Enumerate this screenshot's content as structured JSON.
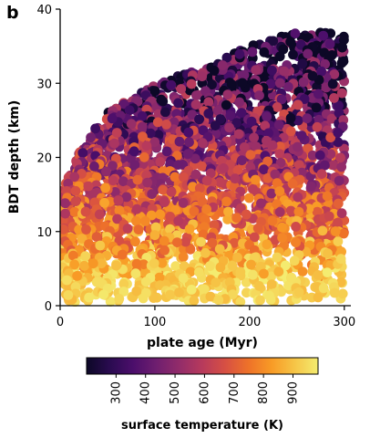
{
  "panel_label": "b",
  "chart_data": {
    "type": "scatter",
    "title": "",
    "xlabel": "plate age (Myr)",
    "ylabel": "BDT depth (km)",
    "xlim": [
      0,
      305
    ],
    "ylim": [
      0,
      40
    ],
    "xticks": [
      0,
      100,
      200,
      300
    ],
    "yticks": [
      0,
      10,
      20,
      30,
      40
    ],
    "x_tick_labels": [
      "0",
      "100",
      "200",
      "300"
    ],
    "y_tick_labels": [
      "0",
      "10",
      "20",
      "30",
      "40"
    ],
    "grid": false,
    "legend": "none",
    "point_count_approx": 3000,
    "upper_envelope": {
      "x": [
        0,
        25,
        50,
        100,
        150,
        200,
        250,
        300
      ],
      "y": [
        15,
        22,
        26,
        30,
        32,
        35,
        37,
        37
      ]
    },
    "trend": "surface temperature generally decreases with BDT depth; hottest points (~900-980 K) cluster at depths 0-6 km, coolest (~200-400 K) reach the deepest depths",
    "colorbar": {
      "label": "surface temperature (K)",
      "orientation": "horizontal",
      "placement": "bottom",
      "range": [
        200,
        985
      ],
      "ticks": [
        300,
        400,
        500,
        600,
        700,
        800,
        900
      ],
      "tick_labels": [
        "300",
        "400",
        "500",
        "600",
        "700",
        "800",
        "900"
      ],
      "colormap": "inferno",
      "stops": [
        "#0c0826",
        "#2a0b50",
        "#4b0e6b",
        "#6e1e6f",
        "#922c6a",
        "#b73a5c",
        "#d75043",
        "#ee7229",
        "#f89b26",
        "#f6c547",
        "#f4ec70"
      ]
    }
  }
}
